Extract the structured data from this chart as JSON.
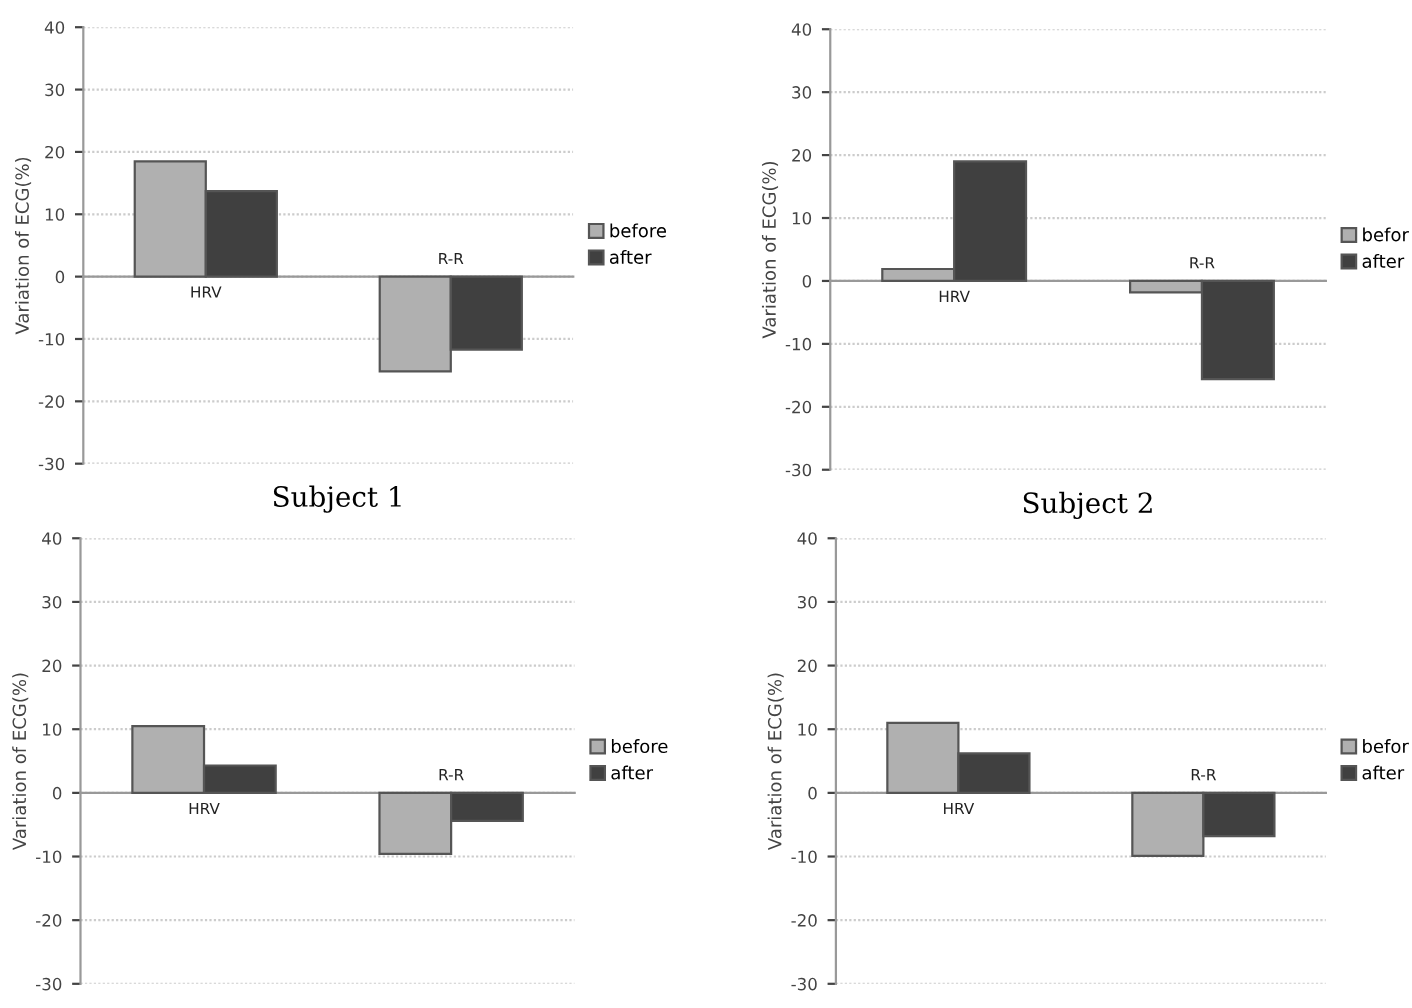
{
  "chart_data": [
    {
      "type": "bar",
      "xlabel": "Subject 1",
      "ylabel": "Variation of ECG(%)",
      "categories": [
        "HRV",
        "R-R"
      ],
      "series": [
        {
          "name": "before",
          "color": "#b0b0b0",
          "values": [
            18.5,
            -15.2
          ]
        },
        {
          "name": "after",
          "color": "#404040",
          "values": [
            13.7,
            -11.7
          ]
        }
      ],
      "ylim": [
        -30,
        40
      ],
      "yticks": [
        -30,
        -20,
        -10,
        0,
        10,
        20,
        30,
        40
      ],
      "grid": "y",
      "legend": "right"
    },
    {
      "type": "bar",
      "xlabel": "Subject 2",
      "ylabel": "Variation of ECG(%)",
      "categories": [
        "HRV",
        "R-R"
      ],
      "series": [
        {
          "name": "befor",
          "color": "#b0b0b0",
          "values": [
            1.9,
            -1.8
          ]
        },
        {
          "name": "after",
          "color": "#404040",
          "values": [
            19,
            -15.6
          ]
        }
      ],
      "ylim": [
        -30,
        40
      ],
      "yticks": [
        -30,
        -20,
        -10,
        0,
        10,
        20,
        30,
        40
      ],
      "grid": "y",
      "legend": "right"
    },
    {
      "type": "bar",
      "ylabel": "Variation of ECG(%)",
      "categories": [
        "HRV",
        "R-R"
      ],
      "series": [
        {
          "name": "before",
          "color": "#b0b0b0",
          "values": [
            10.5,
            -9.6
          ]
        },
        {
          "name": "after",
          "color": "#404040",
          "values": [
            4.3,
            -4.4
          ]
        }
      ],
      "ylim": [
        -30,
        40
      ],
      "yticks": [
        -30,
        -20,
        -10,
        0,
        10,
        20,
        30,
        40
      ],
      "grid": "y",
      "legend": "right"
    },
    {
      "type": "bar",
      "ylabel": "Variation of ECG(%)",
      "categories": [
        "HRV",
        "R-R"
      ],
      "series": [
        {
          "name": "befor",
          "color": "#b0b0b0",
          "values": [
            11,
            -9.9
          ]
        },
        {
          "name": "after",
          "color": "#404040",
          "values": [
            6.2,
            -6.8
          ]
        }
      ],
      "ylim": [
        -30,
        40
      ],
      "yticks": [
        -30,
        -20,
        -10,
        0,
        10,
        20,
        30,
        40
      ],
      "grid": "y",
      "legend": "right"
    }
  ]
}
